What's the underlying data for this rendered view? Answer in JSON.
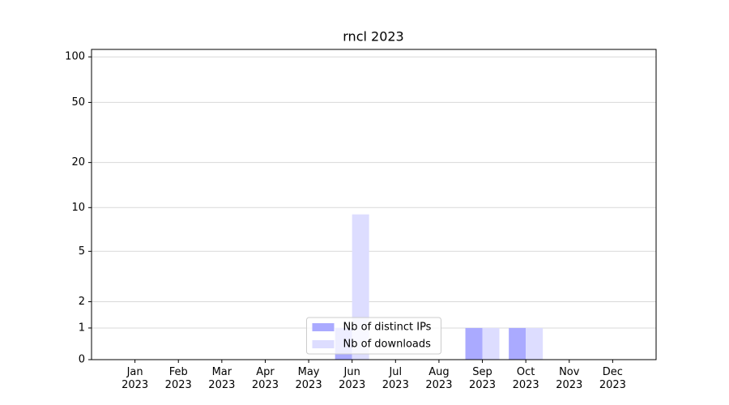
{
  "chart_data": {
    "type": "bar",
    "title": "rncl 2023",
    "categories": [
      "Jan\n2023",
      "Feb\n2023",
      "Mar\n2023",
      "Apr\n2023",
      "May\n2023",
      "Jun\n2023",
      "Jul\n2023",
      "Aug\n2023",
      "Sep\n2023",
      "Oct\n2023",
      "Nov\n2023",
      "Dec\n2023"
    ],
    "series": [
      {
        "name": "Nb of distinct IPs",
        "color": "#aaaaff",
        "values": [
          0,
          0,
          0,
          0,
          0,
          1,
          0,
          0,
          1,
          1,
          0,
          0
        ]
      },
      {
        "name": "Nb of downloads",
        "color": "#ddddff",
        "values": [
          0,
          0,
          0,
          0,
          0,
          9,
          0,
          0,
          1,
          1,
          0,
          0
        ]
      }
    ],
    "yscale": "asinh",
    "linear_width": 2,
    "ylim": [
      0,
      112
    ],
    "yticks": [
      0,
      1,
      2,
      5,
      10,
      20,
      50,
      100
    ],
    "grid": true,
    "legend": "lower center"
  }
}
